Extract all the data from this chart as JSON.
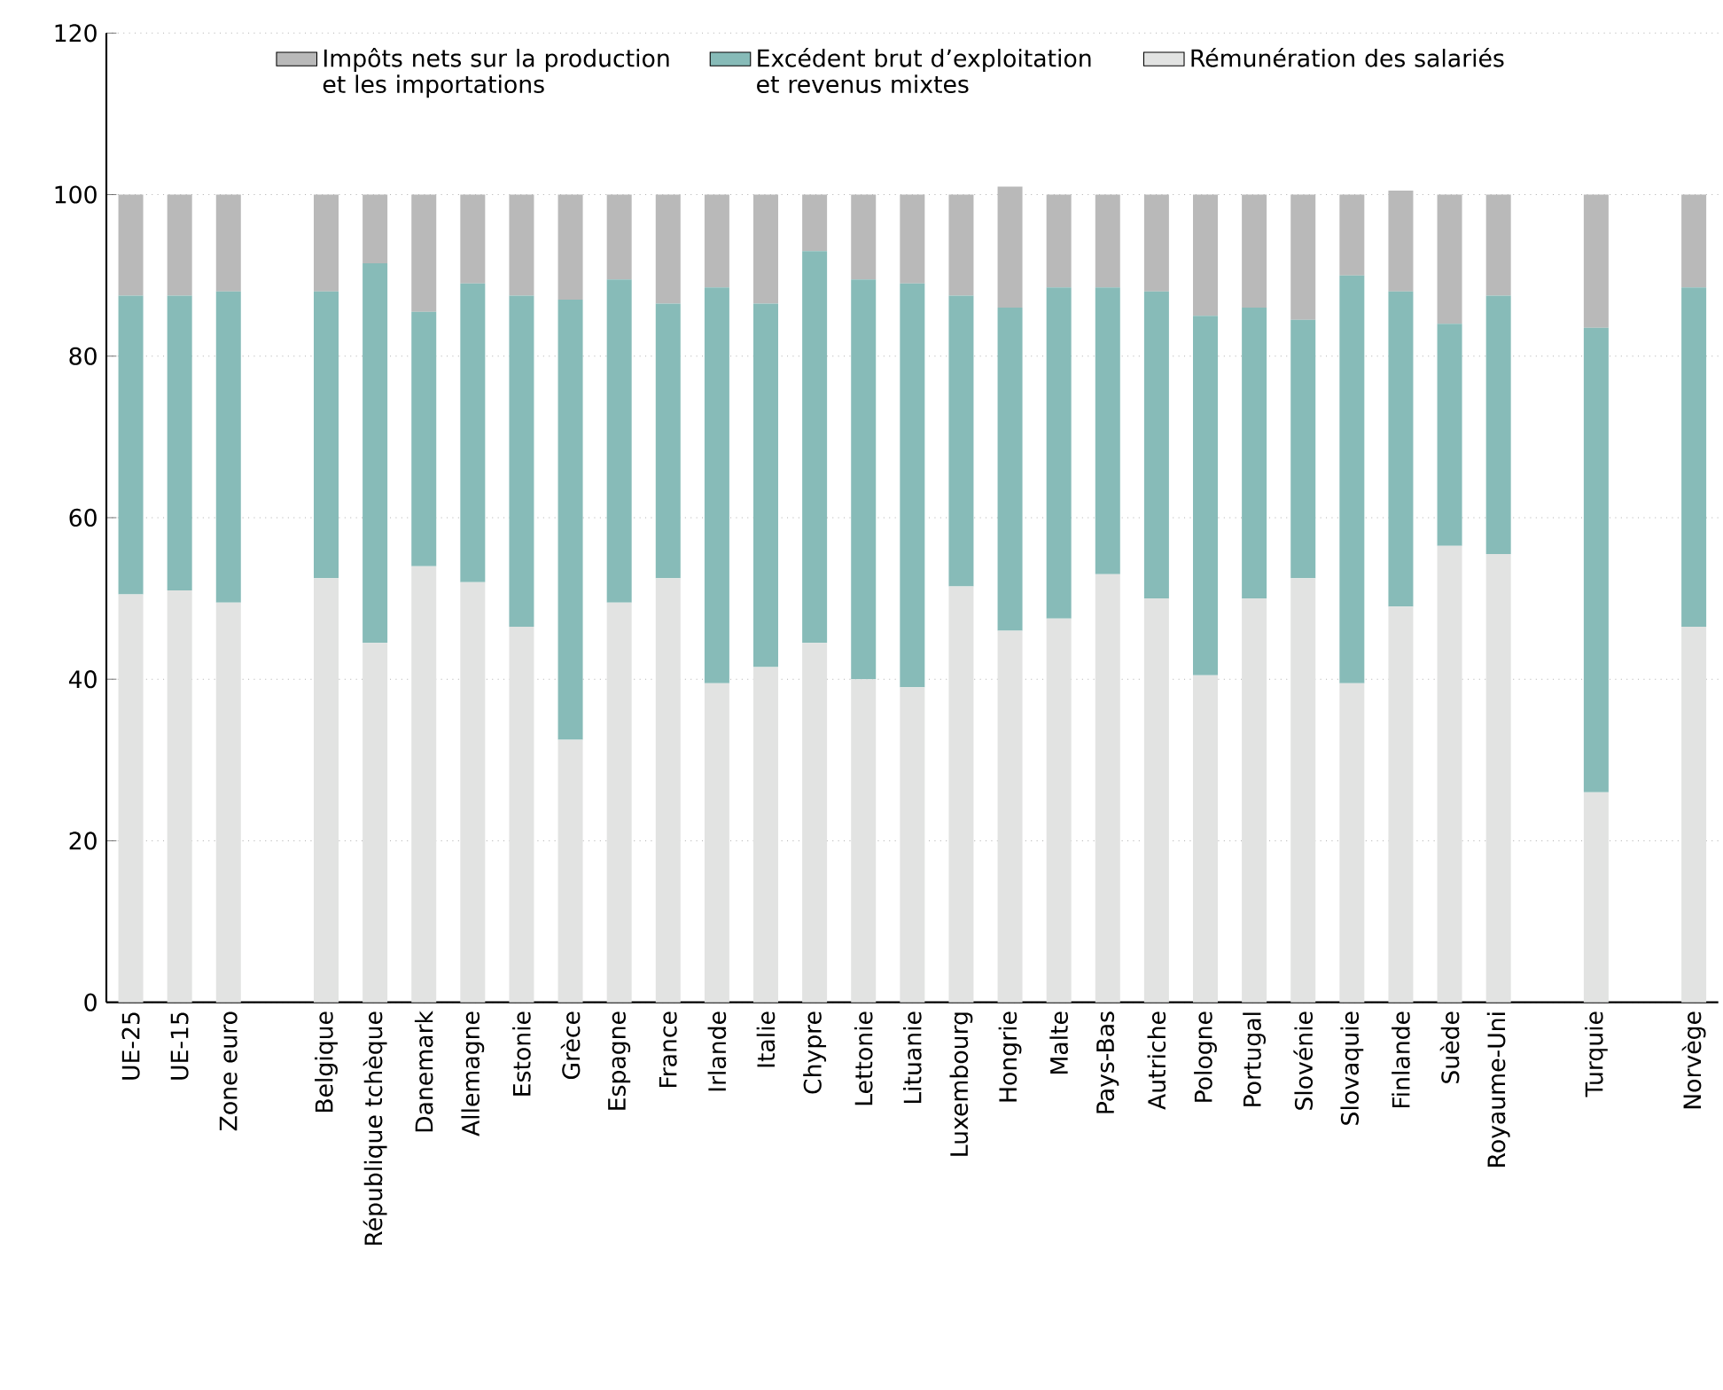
{
  "chart_data": {
    "type": "bar",
    "stacked": true,
    "categories": [
      "UE-25",
      "UE-15",
      "Zone euro",
      null,
      "Belgique",
      "République tchèque",
      "Danemark",
      "Allemagne",
      "Estonie",
      "Grèce",
      "Espagne",
      "France",
      "Irlande",
      "Italie",
      "Chypre",
      "Lettonie",
      "Lituanie",
      "Luxembourg",
      "Hongrie",
      "Malte",
      "Pays-Bas",
      "Autriche",
      "Pologne",
      "Portugal",
      "Slovénie",
      "Slovaquie",
      "Finlande",
      "Suède",
      "Royaume-Uni",
      null,
      "Turquie",
      null,
      "Norvège"
    ],
    "series": [
      {
        "name": "Rémunération des salariés",
        "color": "#e2e3e2",
        "values": [
          50.5,
          51,
          49.5,
          null,
          52.5,
          44.5,
          54,
          52,
          46.5,
          32.5,
          49.5,
          52.5,
          39.5,
          41.5,
          44.5,
          40,
          39,
          51.5,
          46,
          47.5,
          53,
          50,
          40.5,
          50,
          52.5,
          39.5,
          49,
          56.5,
          55.5,
          null,
          26,
          null,
          46.5
        ]
      },
      {
        "name": "Excédent brut d’exploitation et revenus mixtes",
        "color": "#87bbb8",
        "values": [
          37,
          36.5,
          38.5,
          null,
          35.5,
          47,
          31.5,
          37,
          41,
          54.5,
          40,
          34,
          49,
          45,
          48.5,
          49.5,
          50,
          36,
          40,
          41,
          35.5,
          38,
          44.5,
          36,
          32,
          50.5,
          39,
          27.5,
          32,
          null,
          57.5,
          null,
          42
        ]
      },
      {
        "name": "Impôts nets sur la production et les importations",
        "color": "#b9b9b9",
        "values": [
          12.5,
          12.5,
          12,
          null,
          12,
          8.5,
          14.5,
          11,
          12.5,
          13,
          10.5,
          13.5,
          11.5,
          13.5,
          7,
          10.5,
          11,
          12.5,
          15,
          11.5,
          11.5,
          12,
          15,
          14,
          15.5,
          10,
          12.5,
          16,
          12.5,
          null,
          16.5,
          null,
          11.5
        ]
      }
    ],
    "ylim": [
      0,
      120
    ],
    "yticks": [
      0,
      20,
      40,
      60,
      80,
      100,
      120
    ],
    "grid": "y",
    "legend": "top"
  }
}
